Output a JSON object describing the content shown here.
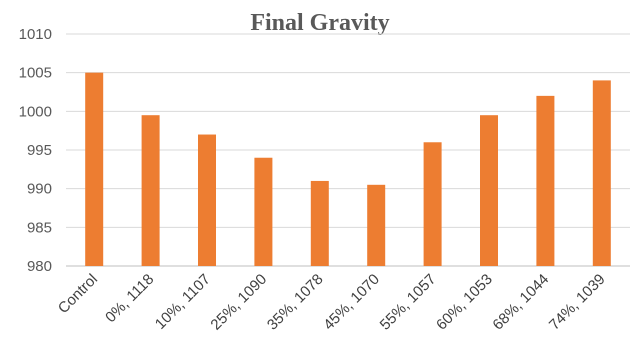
{
  "chart_data": {
    "type": "bar",
    "title": "Final Gravity",
    "xlabel": "",
    "ylabel": "",
    "categories": [
      "Control",
      "0%, 1118",
      "10%, 1107",
      "25%, 1090",
      "35%, 1078",
      "45%, 1070",
      "55%, 1057",
      "60%, 1053",
      "68%, 1044",
      "74%, 1039"
    ],
    "values": [
      1005,
      999.5,
      997,
      994,
      991,
      990.5,
      996,
      999.5,
      1002,
      1004
    ],
    "ylim": [
      980,
      1010
    ],
    "yticks": [
      980,
      985,
      990,
      995,
      1000,
      1005,
      1010
    ],
    "grid": true,
    "legend": "none",
    "colors": {
      "bar": "#ED7D31",
      "grid": "#D9D9D9",
      "text": "#595959"
    }
  }
}
